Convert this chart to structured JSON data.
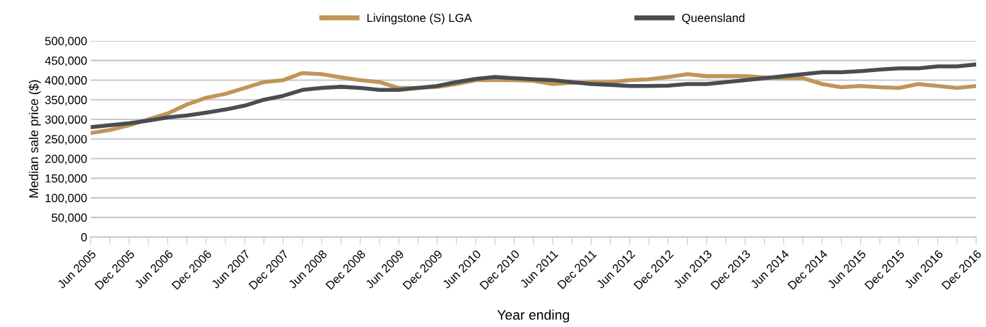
{
  "chart_data": {
    "type": "line",
    "xlabel": "Year ending",
    "ylabel": "Median sale price ($)",
    "categories": [
      "Jun 2005",
      null,
      "Dec 2005",
      null,
      "Jun 2006",
      null,
      "Dec 2006",
      null,
      "Jun 2007",
      null,
      "Dec 2007",
      null,
      "Jun 2008",
      null,
      "Dec 2008",
      null,
      "Jun 2009",
      null,
      "Dec 2009",
      null,
      "Jun 2010",
      null,
      "Dec 2010",
      null,
      "Jun 2011",
      null,
      "Dec 2011",
      null,
      "Jun 2012",
      null,
      "Dec 2012",
      null,
      "Jun 2013",
      null,
      "Dec 2013",
      null,
      "Jun 2014",
      null,
      "Dec 2014",
      null,
      "Jun 2015",
      null,
      "Dec 2015",
      null,
      "Jun 2016",
      null,
      "Dec 2016"
    ],
    "series": [
      {
        "name": "Livingstone (S) LGA",
        "color": "#c0955a",
        "values": [
          265000,
          273000,
          285000,
          300000,
          315000,
          338000,
          355000,
          365000,
          380000,
          395000,
          400000,
          418000,
          415000,
          407000,
          400000,
          395000,
          380000,
          380000,
          383000,
          390000,
          400000,
          400000,
          400000,
          398000,
          390000,
          393000,
          395000,
          395000,
          400000,
          402000,
          408000,
          415000,
          410000,
          410000,
          410000,
          407000,
          405000,
          405000,
          390000,
          382000,
          385000,
          382000,
          380000,
          390000,
          385000,
          380000,
          385000
        ]
      },
      {
        "name": "Queensland",
        "color": "#484c53",
        "values": [
          280000,
          285000,
          290000,
          297000,
          305000,
          310000,
          317000,
          325000,
          335000,
          350000,
          360000,
          375000,
          380000,
          383000,
          380000,
          375000,
          375000,
          380000,
          385000,
          395000,
          403000,
          408000,
          405000,
          402000,
          400000,
          395000,
          390000,
          388000,
          385000,
          385000,
          386000,
          390000,
          390000,
          395000,
          400000,
          405000,
          410000,
          415000,
          420000,
          420000,
          423000,
          427000,
          430000,
          430000,
          435000,
          435000,
          440000
        ]
      }
    ],
    "ylim": [
      0,
      500000
    ],
    "yticks": [
      0,
      {
        "value": 50000,
        "label": "50,000"
      },
      {
        "value": 100000,
        "label": "100,000"
      },
      {
        "value": 150000,
        "label": "150,000"
      },
      {
        "value": 200000,
        "label": "200,000"
      },
      {
        "value": 250000,
        "label": "250,000"
      },
      {
        "value": 300000,
        "label": "300,000"
      },
      {
        "value": 350000,
        "label": "350,000"
      },
      {
        "value": 400000,
        "label": "400,000"
      },
      {
        "value": 450000,
        "label": "450,000"
      },
      {
        "value": 500000,
        "label": "500,000"
      }
    ],
    "grid": "y",
    "legend": "top",
    "marker": "none",
    "line_style": "solid"
  }
}
